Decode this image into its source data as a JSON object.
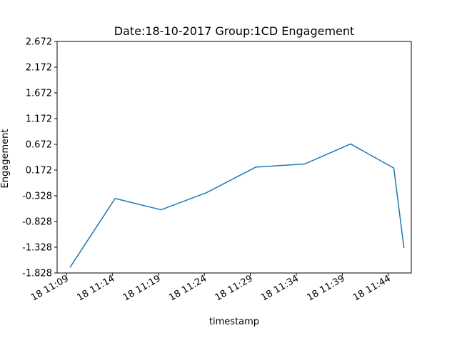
{
  "chart_data": {
    "type": "line",
    "title": "Date:18-10-2017 Group:1CD Engagement",
    "xlabel": "timestamp",
    "ylabel": "Engagement",
    "x_ticks": [
      "18 11:09",
      "18 11:14",
      "18 11:19",
      "18 11:24",
      "18 11:29",
      "18 11:34",
      "18 11:39",
      "18 11:44"
    ],
    "x_tick_minutes": [
      9,
      14,
      19,
      24,
      29,
      34,
      39,
      44
    ],
    "xlim_minutes": [
      8,
      46.5
    ],
    "y_ticks": [
      "-1.828",
      "-1.328",
      "-0.828",
      "-0.328",
      "0.172",
      "0.672",
      "1.172",
      "1.672",
      "2.172",
      "2.672"
    ],
    "ylim": [
      -1.828,
      2.672
    ],
    "grid": false,
    "series": [
      {
        "x_minutes": [
          9.4,
          14.3,
          19.3,
          24.2,
          29.6,
          34.9,
          39.9,
          44.6,
          45.7
        ],
        "values": [
          -1.72,
          -0.38,
          -0.6,
          -0.27,
          0.23,
          0.29,
          0.68,
          0.21,
          -1.34
        ]
      }
    ],
    "colors": {
      "line": "#1f77b4"
    }
  }
}
